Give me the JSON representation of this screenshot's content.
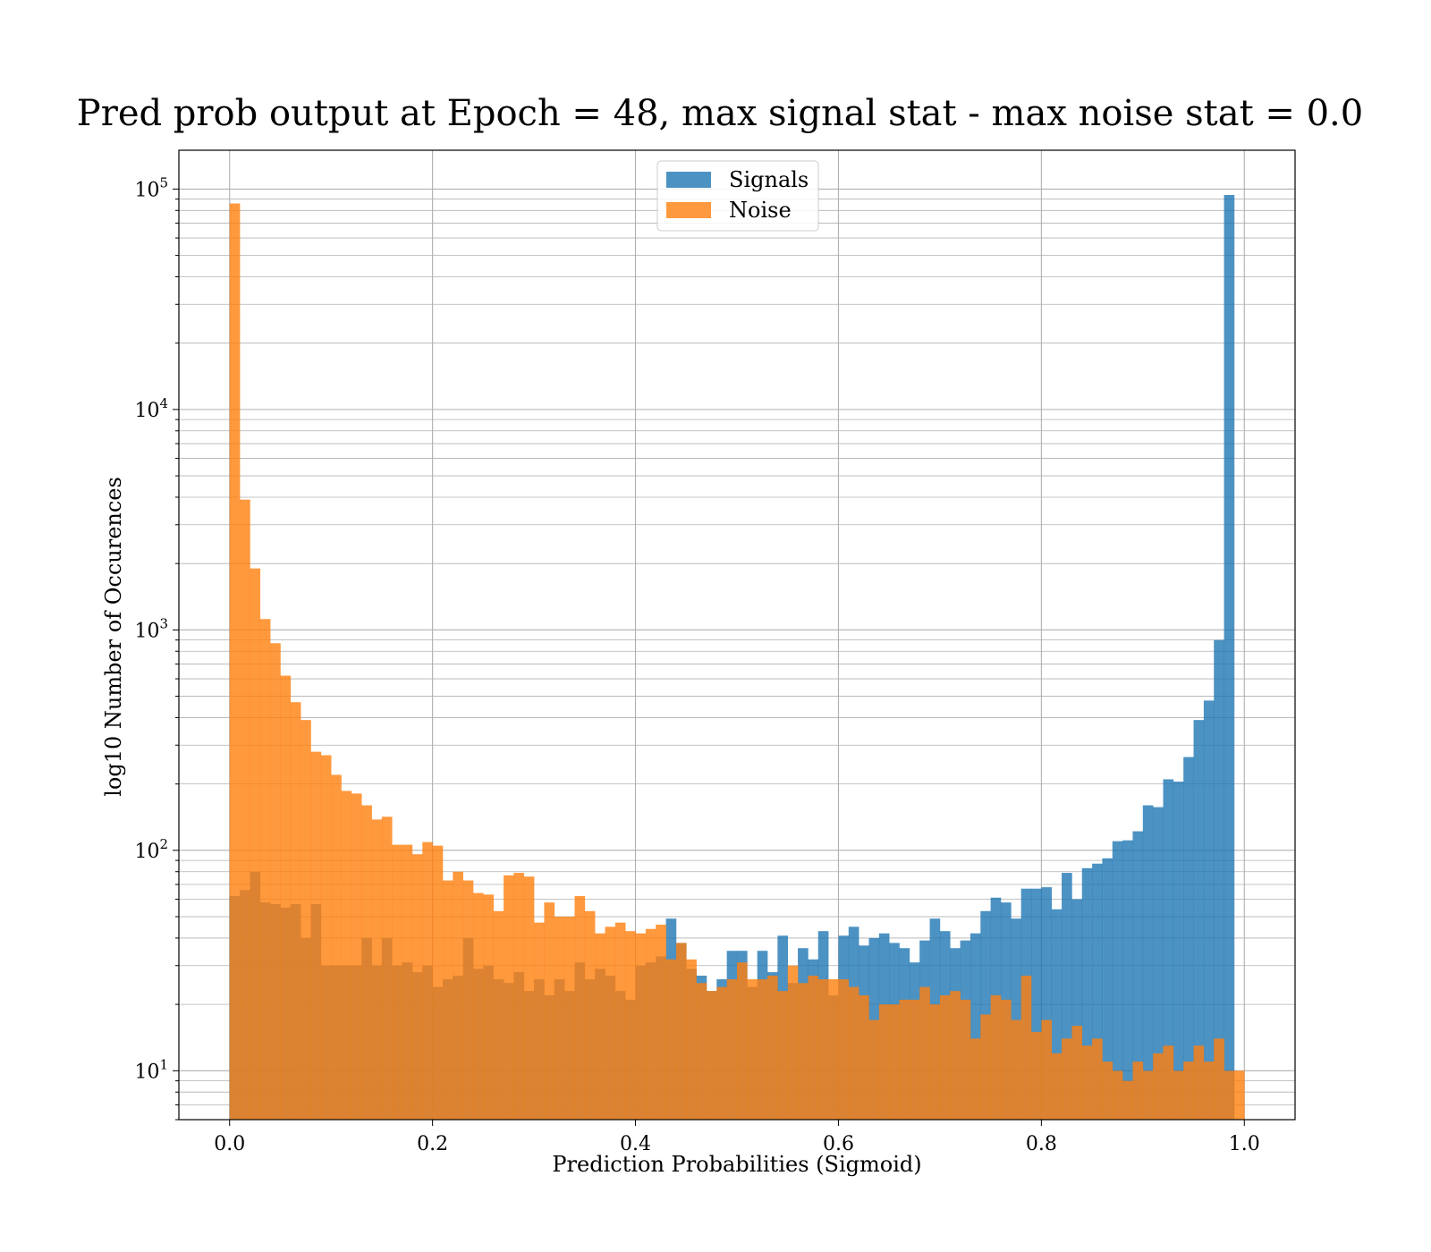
{
  "chart_data": {
    "type": "bar",
    "title": "Pred prob output at Epoch = 48, max signal stat - max noise stat = 0.0",
    "xlabel": "Prediction Probabilities (Sigmoid)",
    "ylabel": "log10 Number of Occurences",
    "x_scale": "linear",
    "y_scale": "log",
    "xlim": [
      -0.05,
      1.05
    ],
    "ylim": [
      6,
      150000
    ],
    "x_ticks": [
      0.0,
      0.2,
      0.4,
      0.6,
      0.8,
      1.0
    ],
    "x_tick_labels": [
      "0.0",
      "0.2",
      "0.4",
      "0.6",
      "0.8",
      "1.0"
    ],
    "y_ticks": [
      10,
      100,
      1000,
      10000,
      100000
    ],
    "y_tick_labels": [
      {
        "base": "10",
        "exp": "1"
      },
      {
        "base": "10",
        "exp": "2"
      },
      {
        "base": "10",
        "exp": "3"
      },
      {
        "base": "10",
        "exp": "4"
      },
      {
        "base": "10",
        "exp": "5"
      }
    ],
    "grid": true,
    "legend_position": "top-center",
    "bin_start": 0.0,
    "bin_width": 0.01,
    "series": [
      {
        "name": "Signals",
        "color": "#1f77b4",
        "values": [
          62,
          66,
          80,
          58,
          57,
          55,
          57,
          40,
          57,
          30,
          30,
          30,
          30,
          40,
          30,
          40,
          30,
          31,
          28,
          30,
          24,
          26,
          27,
          40,
          29,
          30,
          26,
          25,
          28,
          23,
          26,
          22,
          26,
          23,
          31,
          26,
          29,
          27,
          23,
          21,
          30,
          31,
          33,
          49,
          38,
          29,
          27,
          23,
          26,
          35,
          35,
          24,
          35,
          28,
          41,
          25,
          36,
          32,
          43,
          22,
          41,
          45,
          37,
          40,
          42,
          38,
          36,
          31,
          39,
          49,
          43,
          36,
          39,
          42,
          53,
          61,
          58,
          49,
          67,
          67,
          68,
          54,
          79,
          60,
          83,
          87,
          92,
          110,
          111,
          122,
          160,
          157,
          210,
          205,
          265,
          390,
          478,
          900,
          94000,
          0
        ]
      },
      {
        "name": "Noise",
        "color": "#ff7f0e",
        "values": [
          86000,
          3900,
          1900,
          1120,
          870,
          620,
          470,
          390,
          280,
          270,
          220,
          186,
          181,
          160,
          138,
          142,
          106,
          106,
          96,
          109,
          105,
          73,
          80,
          73,
          64,
          63,
          53,
          77,
          79,
          76,
          47,
          58,
          50,
          50,
          62,
          53,
          42,
          45,
          47,
          43,
          42,
          44,
          46,
          32,
          38,
          32,
          25,
          23,
          24,
          26,
          31,
          26,
          26,
          27,
          23,
          30,
          25,
          27,
          26,
          26,
          26,
          24,
          22,
          17,
          20,
          20,
          21,
          21,
          24,
          20,
          22,
          23,
          21,
          14,
          18,
          22,
          21,
          17,
          27,
          15,
          17,
          12,
          14,
          16,
          13,
          14,
          11,
          10,
          9,
          11,
          10,
          12,
          13,
          10,
          11,
          13,
          11,
          14,
          10,
          10
        ]
      }
    ]
  }
}
